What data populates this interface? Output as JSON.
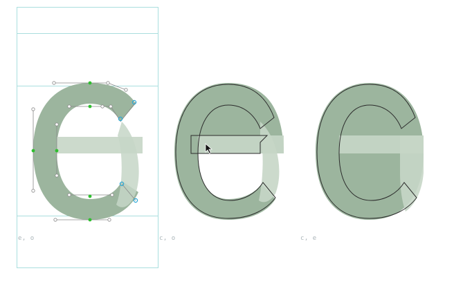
{
  "glyph_cells": [
    {
      "label": "e, o",
      "selected": true
    },
    {
      "label": "c, o",
      "selected": false
    },
    {
      "label": "c, e",
      "selected": false
    }
  ],
  "colors": {
    "glyph_fill": "#9cb59e",
    "glyph_fill_light": "#c6d6c7",
    "outline": "#2b2b2b",
    "guide_lines": "#a9dede",
    "node_on_curve": "#2fbf2f",
    "node_handle": "#8a8a8a",
    "node_selected": "#2aa7d6",
    "label_text": "#a9b4b8"
  },
  "cursor": {
    "icon": "arrow-pointer-icon"
  }
}
